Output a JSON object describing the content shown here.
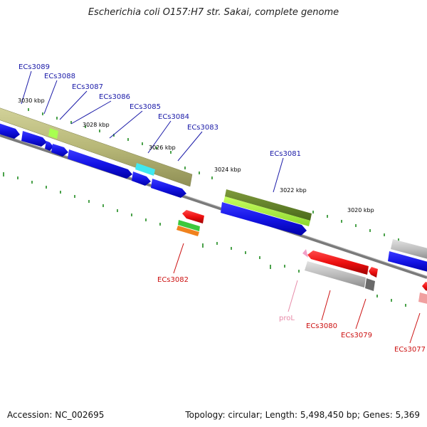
{
  "title": "Escherichia coli O157:H7 str. Sakai, complete genome",
  "footer": {
    "accession": "Accession: NC_002695",
    "summary": "Topology: circular; Length: 5,498,450 bp; Genes: 5,369"
  },
  "ticks": [
    "3030 kbp",
    "3028 kbp",
    "3026 kbp",
    "3024 kbp",
    "3022 kbp",
    "3020 kbp"
  ],
  "genes_forward": [
    "ECs3089",
    "ECs3088",
    "ECs3087",
    "ECs3086",
    "ECs3085",
    "ECs3084",
    "ECs3083",
    "ECs3081"
  ],
  "genes_reverse": [
    "ECs3082",
    "proL",
    "ECs3080",
    "ECs3079",
    "ECs3077"
  ],
  "colors": {
    "forward_label": "#1a1aa8",
    "reverse_label": "#cc1111",
    "trna_label": "#e78aa8",
    "tick": "#1e8a1e",
    "backbone": "#808080",
    "cds_forward": "#1010e0",
    "cds_reverse": "#ee1111",
    "cog_band": "#b8b87a"
  }
}
